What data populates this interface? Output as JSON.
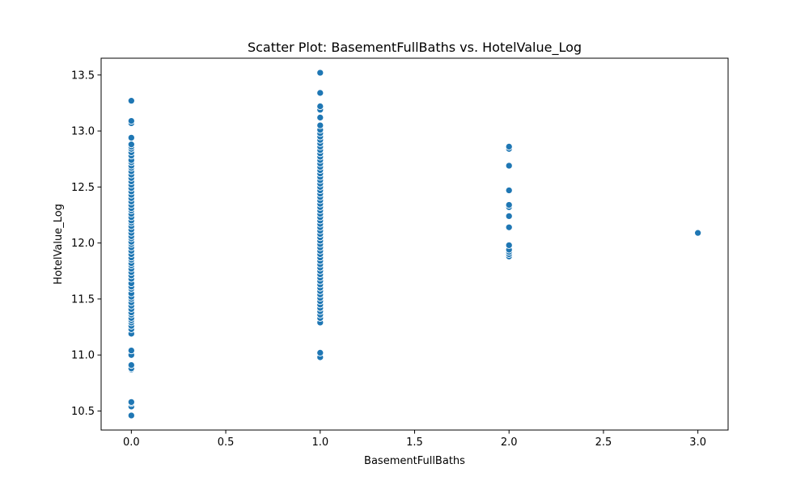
{
  "chart_data": {
    "type": "scatter",
    "title": "Scatter Plot: BasementFullBaths vs. HotelValue_Log",
    "xlabel": "BasementFullBaths",
    "ylabel": "HotelValue_Log",
    "xlim": [
      -0.16,
      3.16
    ],
    "ylim": [
      10.33,
      13.65
    ],
    "x_ticks": [
      {
        "value": 0.0,
        "label": "0.0"
      },
      {
        "value": 0.5,
        "label": "0.5"
      },
      {
        "value": 1.0,
        "label": "1.0"
      },
      {
        "value": 1.5,
        "label": "1.5"
      },
      {
        "value": 2.0,
        "label": "2.0"
      },
      {
        "value": 2.5,
        "label": "2.5"
      },
      {
        "value": 3.0,
        "label": "3.0"
      }
    ],
    "y_ticks": [
      {
        "value": 10.5,
        "label": "10.5"
      },
      {
        "value": 11.0,
        "label": "11.0"
      },
      {
        "value": 11.5,
        "label": "11.5"
      },
      {
        "value": 12.0,
        "label": "12.0"
      },
      {
        "value": 12.5,
        "label": "12.5"
      },
      {
        "value": 13.0,
        "label": "13.0"
      },
      {
        "value": 13.5,
        "label": "13.5"
      }
    ],
    "grid": false,
    "point_color": "#1f77b4",
    "series": [
      {
        "x_value": 0,
        "y": [
          10.46,
          10.54,
          10.57,
          10.58,
          10.87,
          10.88,
          10.91,
          11.0,
          11.04,
          11.19,
          11.23,
          11.26,
          11.29,
          11.31,
          11.33,
          11.36,
          11.38,
          11.41,
          11.44,
          11.47,
          11.5,
          11.52,
          11.55,
          11.59,
          11.61,
          11.64,
          11.68,
          11.71,
          11.74,
          11.77,
          11.8,
          11.82,
          11.85,
          11.87,
          11.9,
          11.93,
          11.96,
          11.99,
          12.01,
          12.04,
          12.06,
          12.09,
          12.12,
          12.15,
          12.18,
          12.2,
          12.23,
          12.26,
          12.29,
          12.31,
          12.34,
          12.37,
          12.4,
          12.43,
          12.46,
          12.49,
          12.52,
          12.55,
          12.58,
          12.61,
          12.64,
          12.67,
          12.69,
          12.72,
          12.74,
          12.78,
          12.81,
          12.84,
          12.86,
          12.88,
          12.94,
          13.07,
          13.09,
          13.27
        ]
      },
      {
        "x_value": 1,
        "y": [
          10.98,
          11.02,
          11.29,
          11.33,
          11.36,
          11.39,
          11.42,
          11.45,
          11.48,
          11.51,
          11.54,
          11.57,
          11.6,
          11.63,
          11.66,
          11.69,
          11.72,
          11.75,
          11.78,
          11.81,
          11.84,
          11.87,
          11.9,
          11.93,
          11.96,
          11.99,
          12.02,
          12.05,
          12.08,
          12.11,
          12.14,
          12.17,
          12.2,
          12.23,
          12.26,
          12.29,
          12.32,
          12.35,
          12.38,
          12.41,
          12.44,
          12.47,
          12.5,
          12.53,
          12.56,
          12.59,
          12.62,
          12.65,
          12.68,
          12.71,
          12.74,
          12.77,
          12.8,
          12.83,
          12.86,
          12.89,
          12.92,
          12.95,
          12.98,
          13.01,
          13.05,
          13.12,
          13.19,
          13.22,
          13.34,
          13.52
        ]
      },
      {
        "x_value": 2,
        "y": [
          11.88,
          11.9,
          11.92,
          11.94,
          11.98,
          12.14,
          12.24,
          12.32,
          12.34,
          12.47,
          12.69,
          12.84,
          12.86
        ]
      },
      {
        "x_value": 3,
        "y": [
          12.09
        ]
      }
    ]
  }
}
